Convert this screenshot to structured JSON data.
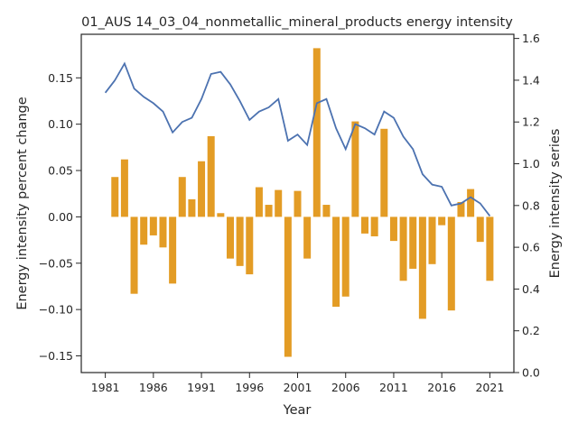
{
  "chart_data": {
    "type": "bar+line",
    "title": "01_AUS 14_03_04_nonmetallic_mineral_products energy intensity",
    "xlabel": "Year",
    "ylabel_left": "Energy intensity percent change",
    "ylabel_right": "Energy intensity series",
    "x_ticks": [
      1981,
      1986,
      1991,
      1996,
      2001,
      2006,
      2011,
      2016,
      2021
    ],
    "y_left_ticks": [
      -0.15,
      -0.1,
      -0.05,
      0.0,
      0.05,
      0.1,
      0.15
    ],
    "y_left_tick_labels": [
      "−0.15",
      "−0.10",
      "−0.05",
      "0.00",
      "0.05",
      "0.10",
      "0.15"
    ],
    "y_right_ticks": [
      0.0,
      0.2,
      0.4,
      0.6,
      0.8,
      1.0,
      1.2,
      1.4,
      1.6
    ],
    "y_right_tick_labels": [
      "0.0",
      "0.2",
      "0.4",
      "0.6",
      "0.8",
      "1.0",
      "1.2",
      "1.4",
      "1.6"
    ],
    "xlim": [
      1978.5,
      2023.5
    ],
    "ylim_left": [
      -0.168,
      0.197
    ],
    "ylim_right": [
      0.0,
      1.62
    ],
    "grid": false,
    "bar_color": "#e39c25",
    "line_color": "#4c72b0",
    "years": [
      1981,
      1982,
      1983,
      1984,
      1985,
      1986,
      1987,
      1988,
      1989,
      1990,
      1991,
      1992,
      1993,
      1994,
      1995,
      1996,
      1997,
      1998,
      1999,
      2000,
      2001,
      2002,
      2003,
      2004,
      2005,
      2006,
      2007,
      2008,
      2009,
      2010,
      2011,
      2012,
      2013,
      2014,
      2015,
      2016,
      2017,
      2018,
      2019,
      2020,
      2021
    ],
    "pct_change": [
      null,
      0.043,
      0.062,
      -0.083,
      -0.03,
      -0.02,
      -0.033,
      -0.072,
      0.043,
      0.019,
      0.06,
      0.087,
      0.004,
      -0.045,
      -0.053,
      -0.062,
      0.032,
      0.013,
      0.029,
      -0.151,
      0.028,
      -0.045,
      0.182,
      0.013,
      -0.097,
      -0.086,
      0.103,
      -0.018,
      -0.021,
      0.095,
      -0.026,
      -0.069,
      -0.056,
      -0.11,
      -0.051,
      -0.009,
      -0.101,
      0.016,
      0.03,
      -0.027,
      -0.069
    ],
    "series": [
      1.34,
      1.4,
      1.48,
      1.36,
      1.32,
      1.29,
      1.25,
      1.15,
      1.2,
      1.22,
      1.31,
      1.43,
      1.44,
      1.38,
      1.3,
      1.21,
      1.25,
      1.27,
      1.31,
      1.11,
      1.14,
      1.09,
      1.29,
      1.31,
      1.17,
      1.07,
      1.19,
      1.17,
      1.14,
      1.25,
      1.22,
      1.13,
      1.07,
      0.95,
      0.9,
      0.89,
      0.8,
      0.81,
      0.84,
      0.81,
      0.75
    ]
  }
}
